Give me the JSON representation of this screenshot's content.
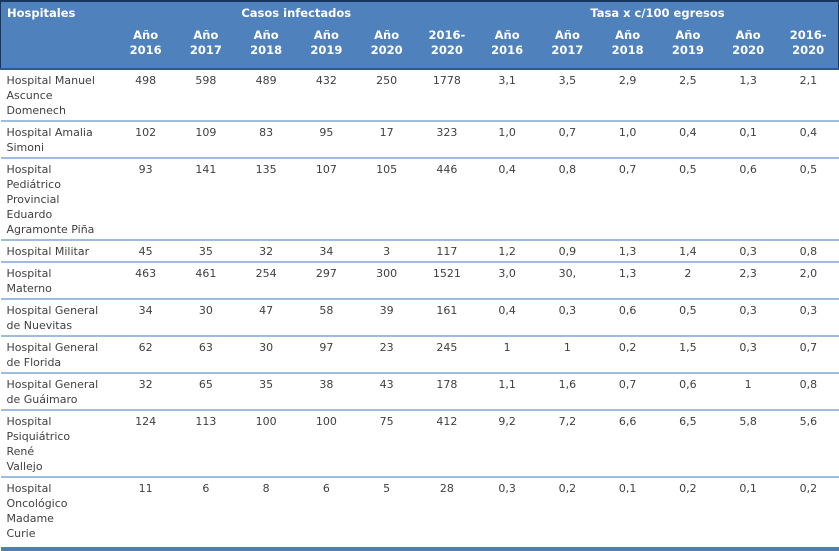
{
  "table": {
    "header": {
      "hospitals_label": "Hospitales",
      "casos_group_label": "Casos infectados",
      "tasa_group_label": "Tasa x c/100 egresos",
      "year_columns": [
        "Año\n2016",
        "Año\n2017",
        "Año\n2018",
        "Año\n2019",
        "Año\n2020",
        "2016-\n2020"
      ]
    },
    "rows": [
      {
        "hospital": "Hospital Manuel\nAscunce\nDomenech",
        "casos": [
          "498",
          "598",
          "489",
          "432",
          "250",
          "1778"
        ],
        "tasa": [
          "3,1",
          "3,5",
          "2,9",
          "2,5",
          "1,3",
          "2,1"
        ]
      },
      {
        "hospital": "Hospital Amalia\nSimoni",
        "casos": [
          "102",
          "109",
          "83",
          "95",
          "17",
          "323"
        ],
        "tasa": [
          "1,0",
          "0,7",
          "1,0",
          "0,4",
          "0,1",
          "0,4"
        ]
      },
      {
        "hospital": "Hospital\nPediátrico\nProvincial\nEduardo\nAgramonte Piña",
        "casos": [
          "93",
          "141",
          "135",
          "107",
          "105",
          "446"
        ],
        "tasa": [
          "0,4",
          "0,8",
          "0,7",
          "0,5",
          "0,6",
          "0,5"
        ]
      },
      {
        "hospital": "Hospital Militar",
        "casos": [
          "45",
          "35",
          "32",
          "34",
          "3",
          "117"
        ],
        "tasa": [
          "1,2",
          "0,9",
          "1,3",
          "1,4",
          "0,3",
          "0,8"
        ]
      },
      {
        "hospital": "Hospital\nMaterno",
        "casos": [
          "463",
          "461",
          "254",
          "297",
          "300",
          "1521"
        ],
        "tasa": [
          "3,0",
          "30,",
          "1,3",
          "2",
          "2,3",
          "2,0"
        ]
      },
      {
        "hospital": "Hospital General\nde Nuevitas",
        "casos": [
          "34",
          "30",
          "47",
          "58",
          "39",
          "161"
        ],
        "tasa": [
          "0,4",
          "0,3",
          "0,6",
          "0,5",
          "0,3",
          "0,3"
        ]
      },
      {
        "hospital": "Hospital General\nde Florida",
        "casos": [
          "62",
          "63",
          "30",
          "97",
          "23",
          "245"
        ],
        "tasa": [
          "1",
          "1",
          "0,2",
          "1,5",
          "0,3",
          "0,7"
        ]
      },
      {
        "hospital": "Hospital General\nde Guáimaro",
        "casos": [
          "32",
          "65",
          "35",
          "38",
          "43",
          "178"
        ],
        "tasa": [
          "1,1",
          "1,6",
          "0,7",
          "0,6",
          "1",
          "0,8"
        ]
      },
      {
        "hospital": "Hospital\nPsiquiátrico\nRené\nVallejo",
        "casos": [
          "124",
          "113",
          "100",
          "100",
          "75",
          "412"
        ],
        "tasa": [
          "9,2",
          "7,2",
          "6,6",
          "6,5",
          "5,8",
          "5,6"
        ]
      },
      {
        "hospital": "Hospital\nOncológico\nMadame\nCurie",
        "casos": [
          "11",
          "6",
          "8",
          "6",
          "5",
          "28"
        ],
        "tasa": [
          "0,3",
          "0,2",
          "0,1",
          "0,2",
          "0,1",
          "0,2"
        ]
      }
    ]
  },
  "colors": {
    "header_bg": "#4F81BD",
    "header_text": "#FFFFFF",
    "header_outline": "#17365D",
    "row_divider": "#9DBCE0",
    "bottom_border": "#4E7FBA",
    "body_text": "#404040"
  }
}
